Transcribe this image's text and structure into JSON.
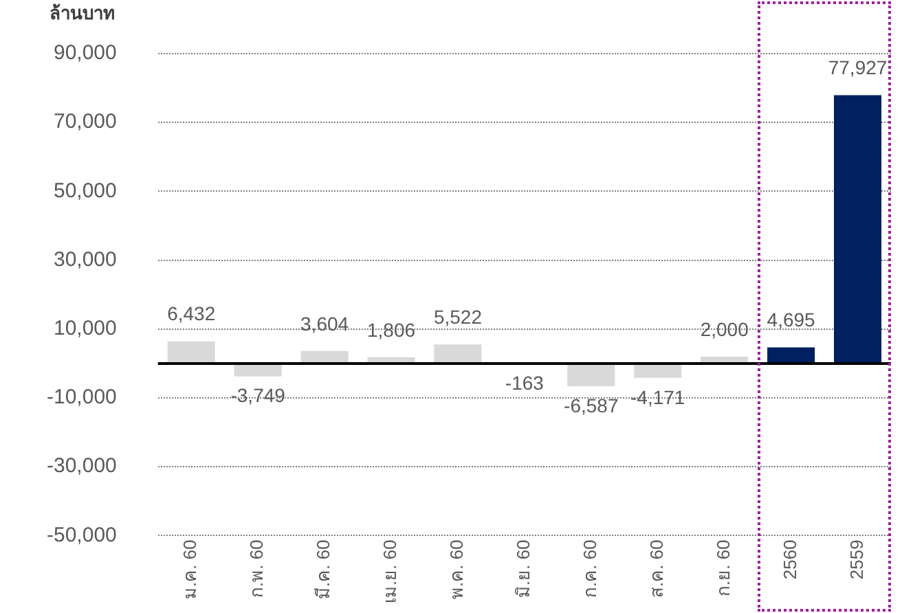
{
  "chart_data": {
    "type": "bar",
    "ylabel": "ล้านบาท",
    "categories": [
      "ม.ค. 60",
      "ก.พ. 60",
      "มี.ค. 60",
      "เม.ย. 60",
      "พ.ค. 60",
      "มิ.ย. 60",
      "ก.ค. 60",
      "ส.ค. 60",
      "ก.ย. 60",
      "2560",
      "2559"
    ],
    "values": [
      6432,
      -3749,
      3604,
      1806,
      5522,
      -163,
      -6587,
      -4171,
      2000,
      4695,
      77927
    ],
    "colors": [
      "#d9d9d9",
      "#d9d9d9",
      "#d9d9d9",
      "#d9d9d9",
      "#d9d9d9",
      "#d9d9d9",
      "#d9d9d9",
      "#d9d9d9",
      "#d9d9d9",
      "#002060",
      "#002060"
    ],
    "ylim": [
      -50000,
      90000
    ],
    "yticks": [
      {
        "value": -50000,
        "label": "-50,000"
      },
      {
        "value": -30000,
        "label": "-30,000"
      },
      {
        "value": -10000,
        "label": "-10,000"
      },
      {
        "value": 10000,
        "label": "10,000"
      },
      {
        "value": 30000,
        "label": "30,000"
      },
      {
        "value": 50000,
        "label": "50,000"
      },
      {
        "value": 70000,
        "label": "70,000"
      },
      {
        "value": 90000,
        "label": "90,000"
      }
    ],
    "grid": "y",
    "value_labels": [
      "6,432",
      "-3,749",
      "3,604",
      "1,806",
      "5,522",
      "-163",
      "-6,587",
      "-4,171",
      "2,000",
      "4,695",
      "77,927"
    ]
  }
}
